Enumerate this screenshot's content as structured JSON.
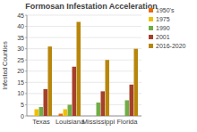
{
  "chart_data": {
    "type": "bar",
    "title": "Formosan Infestation Acceleration",
    "y_label": "Infested Counties",
    "categories": [
      "Texas",
      "Louisiana",
      "Mississippi",
      "Florida"
    ],
    "series": [
      {
        "name": "1950's",
        "color": "#e46c0a",
        "values": [
          0,
          1,
          0,
          0
        ]
      },
      {
        "name": "1975",
        "color": "#f0c000",
        "values": [
          3,
          3,
          0,
          0
        ]
      },
      {
        "name": "1990",
        "color": "#70ad47",
        "values": [
          4,
          5,
          6,
          7
        ]
      },
      {
        "name": "2001",
        "color": "#a5402a",
        "values": [
          12,
          22,
          11,
          14
        ]
      },
      {
        "name": "2016-2020",
        "color": "#b8860b",
        "values": [
          31,
          42,
          25,
          30
        ]
      }
    ],
    "ylim": [
      0,
      45
    ],
    "yticks": [
      0,
      5,
      10,
      15,
      20,
      25,
      30,
      35,
      40,
      45
    ],
    "grid": true,
    "legend": "right"
  }
}
